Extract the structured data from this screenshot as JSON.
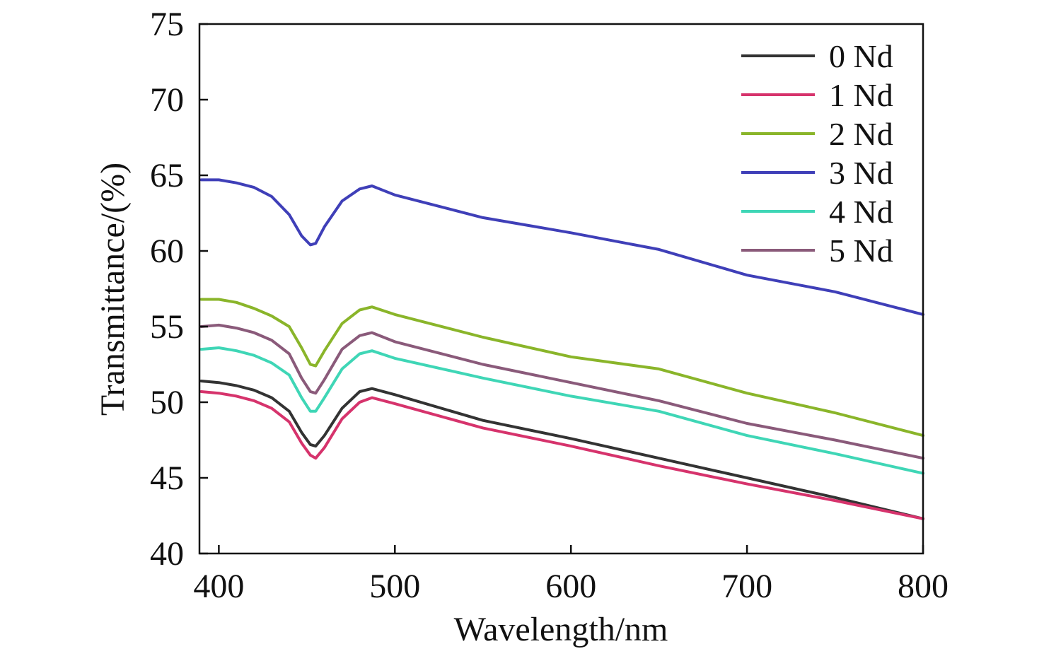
{
  "chart_data": {
    "type": "line",
    "xlabel": "Wavelength/nm",
    "ylabel": "Transmittance/(%)",
    "xlim": [
      389,
      800
    ],
    "ylim": [
      40,
      75
    ],
    "xticks": [
      400,
      500,
      600,
      700,
      800
    ],
    "yticks": [
      40,
      45,
      50,
      55,
      60,
      65,
      70,
      75
    ],
    "x_tick_labels": [
      "400",
      "500",
      "600",
      "700",
      "800"
    ],
    "y_tick_labels": [
      "40",
      "45",
      "50",
      "55",
      "60",
      "65",
      "70",
      "75"
    ],
    "legend_position": "top-right",
    "grid": false,
    "x": [
      390,
      400,
      410,
      420,
      430,
      440,
      447,
      452,
      455,
      460,
      470,
      480,
      487,
      500,
      550,
      600,
      650,
      700,
      750,
      800
    ],
    "series": [
      {
        "name": "0 Nd",
        "color": "#333333",
        "values": [
          51.4,
          51.3,
          51.1,
          50.8,
          50.3,
          49.4,
          48.0,
          47.2,
          47.1,
          47.8,
          49.6,
          50.7,
          50.9,
          50.5,
          48.8,
          47.6,
          46.3,
          45.0,
          43.7,
          42.3
        ]
      },
      {
        "name": "1 Nd",
        "color": "#d6336c",
        "values": [
          50.7,
          50.6,
          50.4,
          50.1,
          49.6,
          48.7,
          47.3,
          46.5,
          46.3,
          47.0,
          48.9,
          50.0,
          50.3,
          49.9,
          48.3,
          47.1,
          45.8,
          44.6,
          43.5,
          42.3
        ]
      },
      {
        "name": "2 Nd",
        "color": "#8ab52a",
        "values": [
          56.8,
          56.8,
          56.6,
          56.2,
          55.7,
          55.0,
          53.6,
          52.5,
          52.4,
          53.4,
          55.2,
          56.1,
          56.3,
          55.8,
          54.3,
          53.0,
          52.2,
          50.6,
          49.3,
          47.8
        ]
      },
      {
        "name": "3 Nd",
        "color": "#3f3fb8",
        "values": [
          64.7,
          64.7,
          64.5,
          64.2,
          63.6,
          62.4,
          61.0,
          60.4,
          60.5,
          61.6,
          63.3,
          64.1,
          64.3,
          63.7,
          62.2,
          61.2,
          60.1,
          58.4,
          57.3,
          55.8
        ]
      },
      {
        "name": "4 Nd",
        "color": "#3fd6b6",
        "values": [
          53.5,
          53.6,
          53.4,
          53.1,
          52.6,
          51.8,
          50.3,
          49.4,
          49.4,
          50.3,
          52.2,
          53.2,
          53.4,
          52.9,
          51.6,
          50.4,
          49.4,
          47.8,
          46.6,
          45.3
        ]
      },
      {
        "name": "5 Nd",
        "color": "#8a5a7a",
        "values": [
          55.0,
          55.1,
          54.9,
          54.6,
          54.1,
          53.2,
          51.6,
          50.7,
          50.6,
          51.5,
          53.5,
          54.4,
          54.6,
          54.0,
          52.5,
          51.3,
          50.1,
          48.6,
          47.5,
          46.3
        ]
      }
    ]
  }
}
